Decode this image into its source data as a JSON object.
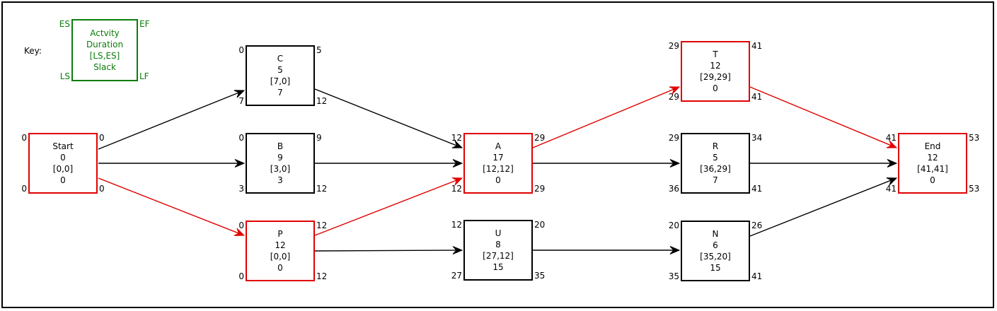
{
  "key": {
    "label": "Key:",
    "lines": [
      "Actvity",
      "Duration",
      "[LS,ES]",
      "Slack"
    ],
    "es": "ES",
    "ef": "EF",
    "ls": "LS",
    "lf": "LF",
    "color": "#0a7d0a"
  },
  "colors": {
    "critical": "#e00000",
    "normal": "#000000"
  },
  "nodes": [
    {
      "id": "start",
      "name": "Start",
      "duration": "0",
      "ls_es": "[0,0]",
      "slack": "0",
      "es": "0",
      "ef": "0",
      "ls": "0",
      "lf": "0",
      "critical": true
    },
    {
      "id": "c",
      "name": "C",
      "duration": "5",
      "ls_es": "[7,0]",
      "slack": "7",
      "es": "0",
      "ef": "5",
      "ls": "7",
      "lf": "12",
      "critical": false
    },
    {
      "id": "b",
      "name": "B",
      "duration": "9",
      "ls_es": "[3,0]",
      "slack": "3",
      "es": "0",
      "ef": "9",
      "ls": "3",
      "lf": "12",
      "critical": false
    },
    {
      "id": "p",
      "name": "P",
      "duration": "12",
      "ls_es": "[0,0]",
      "slack": "0",
      "es": "0",
      "ef": "12",
      "ls": "0",
      "lf": "12",
      "critical": true
    },
    {
      "id": "a",
      "name": "A",
      "duration": "17",
      "ls_es": "[12,12]",
      "slack": "0",
      "es": "12",
      "ef": "29",
      "ls": "12",
      "lf": "29",
      "critical": true
    },
    {
      "id": "u",
      "name": "U",
      "duration": "8",
      "ls_es": "[27,12]",
      "slack": "15",
      "es": "12",
      "ef": "20",
      "ls": "27",
      "lf": "35",
      "critical": false
    },
    {
      "id": "t",
      "name": "T",
      "duration": "12",
      "ls_es": "[29,29]",
      "slack": "0",
      "es": "29",
      "ef": "41",
      "ls": "29",
      "lf": "41",
      "critical": true
    },
    {
      "id": "r",
      "name": "R",
      "duration": "5",
      "ls_es": "[36,29]",
      "slack": "7",
      "es": "29",
      "ef": "34",
      "ls": "36",
      "lf": "41",
      "critical": false
    },
    {
      "id": "n",
      "name": "N",
      "duration": "6",
      "ls_es": "[35,20]",
      "slack": "15",
      "es": "20",
      "ef": "26",
      "ls": "35",
      "lf": "41",
      "critical": false
    },
    {
      "id": "end",
      "name": "End",
      "duration": "12",
      "ls_es": "[41,41]",
      "slack": "0",
      "es": "41",
      "ef": "53",
      "ls": "41",
      "lf": "53",
      "critical": true
    }
  ],
  "edges": [
    {
      "from": "start",
      "to": "c",
      "critical": false
    },
    {
      "from": "start",
      "to": "b",
      "critical": false
    },
    {
      "from": "start",
      "to": "p",
      "critical": true
    },
    {
      "from": "c",
      "to": "a",
      "critical": false
    },
    {
      "from": "b",
      "to": "a",
      "critical": false
    },
    {
      "from": "p",
      "to": "a",
      "critical": true
    },
    {
      "from": "p",
      "to": "u",
      "critical": false
    },
    {
      "from": "a",
      "to": "t",
      "critical": true
    },
    {
      "from": "a",
      "to": "r",
      "critical": false
    },
    {
      "from": "u",
      "to": "n",
      "critical": false
    },
    {
      "from": "t",
      "to": "end",
      "critical": true
    },
    {
      "from": "r",
      "to": "end",
      "critical": false
    },
    {
      "from": "n",
      "to": "end",
      "critical": false
    }
  ]
}
